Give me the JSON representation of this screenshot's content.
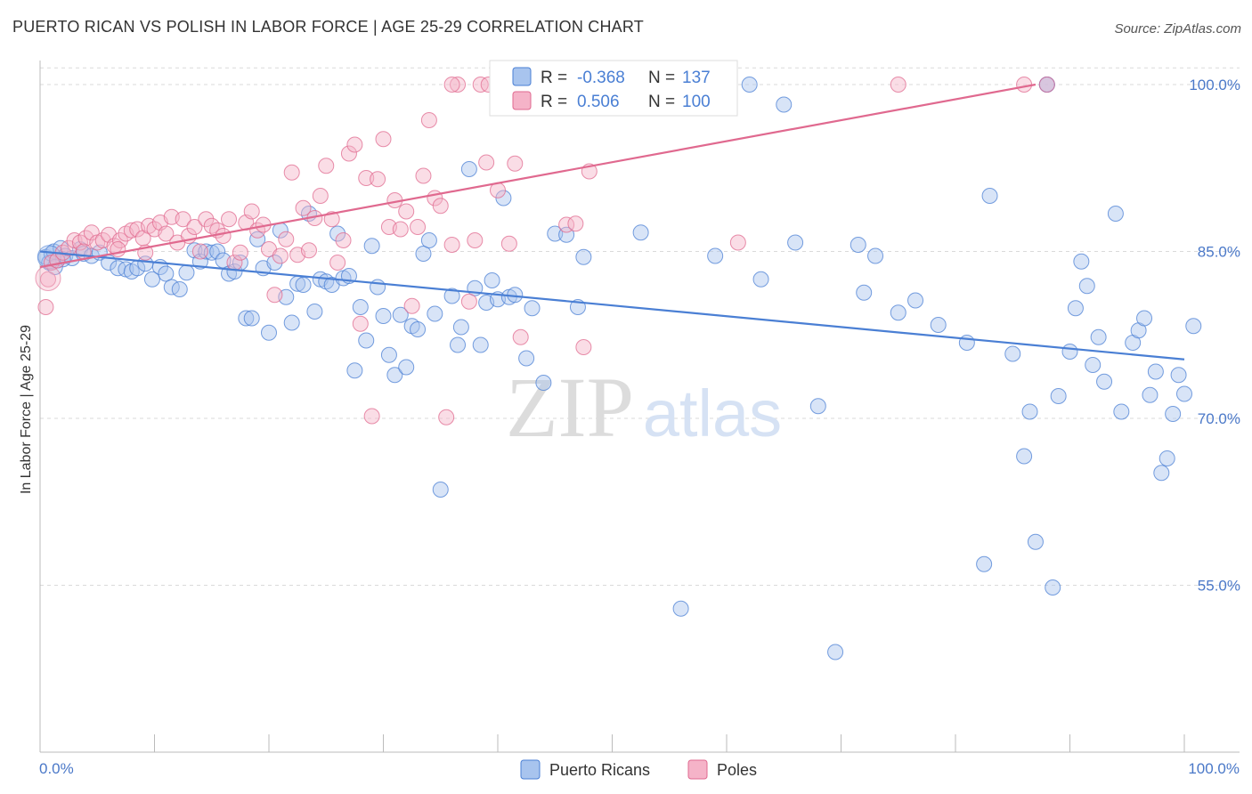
{
  "title": "PUERTO RICAN VS POLISH IN LABOR FORCE | AGE 25-29 CORRELATION CHART",
  "source": "Source: ZipAtlas.com",
  "watermark": {
    "zip": "ZIP",
    "atlas": "atlas"
  },
  "colors": {
    "blue": "#4a7fd4",
    "blue_fill": "#a8c4ee",
    "pink": "#e0698f",
    "pink_fill": "#f5b3c8",
    "grid": "#d9d9d9",
    "axis_text": "#4a78c8"
  },
  "legend": {
    "rows": [
      {
        "r_label": "R =",
        "r_value": "-0.368",
        "n_label": "N =",
        "n_value": "137"
      },
      {
        "r_label": "R =",
        "r_value": "0.506",
        "n_label": "N =",
        "n_value": "100"
      }
    ]
  },
  "chart_data": {
    "type": "scatter",
    "ylabel": "In Labor Force | Age 25-29",
    "xlim": [
      0,
      100
    ],
    "ylim": [
      40,
      102
    ],
    "x_tick_labels": [
      "0.0%",
      "100.0%"
    ],
    "y_ticks": [
      {
        "value": 100,
        "label": "100.0%"
      },
      {
        "value": 85,
        "label": "85.0%"
      },
      {
        "value": 70,
        "label": "70.0%"
      },
      {
        "value": 55,
        "label": "55.0%"
      }
    ],
    "series": [
      {
        "name": "Puerto Ricans",
        "color": "#4a7fd4",
        "trend": {
          "x0": 0,
          "y0": 85.0,
          "x1": 100,
          "y1": 75.3
        },
        "points": [
          [
            0.5,
            84.5
          ],
          [
            0.8,
            84.0
          ],
          [
            1.0,
            84.8
          ],
          [
            1.2,
            85.0
          ],
          [
            1.5,
            84.2
          ],
          [
            1.8,
            85.3
          ],
          [
            2.2,
            84.6
          ],
          [
            2.8,
            84.4
          ],
          [
            3.5,
            85.2
          ],
          [
            3.8,
            84.8
          ],
          [
            4.5,
            84.6
          ],
          [
            5.2,
            84.9
          ],
          [
            6.0,
            84.0
          ],
          [
            6.8,
            83.5
          ],
          [
            7.5,
            83.4
          ],
          [
            8.0,
            83.2
          ],
          [
            8.5,
            83.5
          ],
          [
            9.2,
            83.9
          ],
          [
            9.8,
            82.5
          ],
          [
            10.5,
            83.6
          ],
          [
            11.0,
            83.0
          ],
          [
            11.5,
            81.8
          ],
          [
            12.2,
            81.6
          ],
          [
            12.8,
            83.1
          ],
          [
            13.5,
            85.1
          ],
          [
            14.0,
            84.1
          ],
          [
            14.5,
            85.0
          ],
          [
            15.0,
            84.9
          ],
          [
            15.5,
            85.0
          ],
          [
            16.0,
            84.2
          ],
          [
            16.5,
            83.0
          ],
          [
            17.0,
            83.2
          ],
          [
            17.5,
            84.0
          ],
          [
            18.0,
            79.0
          ],
          [
            18.5,
            79.0
          ],
          [
            19.0,
            86.1
          ],
          [
            19.5,
            83.5
          ],
          [
            20.0,
            77.7
          ],
          [
            20.5,
            84.0
          ],
          [
            21.0,
            86.9
          ],
          [
            21.5,
            80.9
          ],
          [
            22.0,
            78.6
          ],
          [
            22.5,
            82.1
          ],
          [
            23.0,
            82.0
          ],
          [
            23.5,
            88.4
          ],
          [
            24.0,
            79.6
          ],
          [
            24.5,
            82.5
          ],
          [
            25.0,
            82.3
          ],
          [
            25.5,
            82.0
          ],
          [
            26.0,
            86.6
          ],
          [
            26.5,
            82.6
          ],
          [
            27.0,
            82.8
          ],
          [
            27.5,
            74.3
          ],
          [
            28.0,
            80.0
          ],
          [
            28.5,
            77.0
          ],
          [
            29.0,
            85.5
          ],
          [
            29.5,
            81.8
          ],
          [
            30.0,
            79.2
          ],
          [
            30.5,
            75.7
          ],
          [
            31.0,
            73.9
          ],
          [
            31.5,
            79.3
          ],
          [
            32.0,
            74.6
          ],
          [
            32.5,
            78.3
          ],
          [
            33.0,
            78.0
          ],
          [
            33.5,
            84.8
          ],
          [
            34.0,
            86.0
          ],
          [
            34.5,
            79.4
          ],
          [
            35.0,
            63.6
          ],
          [
            36.0,
            81.0
          ],
          [
            36.5,
            76.6
          ],
          [
            36.8,
            78.2
          ],
          [
            37.5,
            92.4
          ],
          [
            38.0,
            81.7
          ],
          [
            38.5,
            76.6
          ],
          [
            39.0,
            80.4
          ],
          [
            39.5,
            82.4
          ],
          [
            40.0,
            80.7
          ],
          [
            40.5,
            89.8
          ],
          [
            41.0,
            80.9
          ],
          [
            41.5,
            81.1
          ],
          [
            42.5,
            75.4
          ],
          [
            43.0,
            79.9
          ],
          [
            44.0,
            73.2
          ],
          [
            45.0,
            86.6
          ],
          [
            46.0,
            86.5
          ],
          [
            47.0,
            80.0
          ],
          [
            47.5,
            84.5
          ],
          [
            48.0,
            100.0
          ],
          [
            52.5,
            86.7
          ],
          [
            54.0,
            100.0
          ],
          [
            56.0,
            52.9
          ],
          [
            59.0,
            84.6
          ],
          [
            62.0,
            100.0
          ],
          [
            63.0,
            82.5
          ],
          [
            65.0,
            98.2
          ],
          [
            66.0,
            85.8
          ],
          [
            68.0,
            71.1
          ],
          [
            69.5,
            49.0
          ],
          [
            71.5,
            85.6
          ],
          [
            72.0,
            81.3
          ],
          [
            73.0,
            84.6
          ],
          [
            75.0,
            79.5
          ],
          [
            76.5,
            80.6
          ],
          [
            78.5,
            78.4
          ],
          [
            81.0,
            76.8
          ],
          [
            82.5,
            56.9
          ],
          [
            83.0,
            90.0
          ],
          [
            85.0,
            75.8
          ],
          [
            86.0,
            66.6
          ],
          [
            86.5,
            70.6
          ],
          [
            87.0,
            58.9
          ],
          [
            88.0,
            100.0
          ],
          [
            88.5,
            54.8
          ],
          [
            89.0,
            72.0
          ],
          [
            90.0,
            76.0
          ],
          [
            90.5,
            79.9
          ],
          [
            91.0,
            84.1
          ],
          [
            91.5,
            81.9
          ],
          [
            92.0,
            74.8
          ],
          [
            92.5,
            77.3
          ],
          [
            93.0,
            73.3
          ],
          [
            94.0,
            88.4
          ],
          [
            94.5,
            70.6
          ],
          [
            95.5,
            76.8
          ],
          [
            96.0,
            77.9
          ],
          [
            96.5,
            79.0
          ],
          [
            97.0,
            72.1
          ],
          [
            97.5,
            74.2
          ],
          [
            98.0,
            65.1
          ],
          [
            98.5,
            66.4
          ],
          [
            99.0,
            70.4
          ],
          [
            99.5,
            73.9
          ],
          [
            100.0,
            72.2
          ],
          [
            100.8,
            78.3
          ],
          [
            88.0,
            100.0
          ],
          [
            2.0,
            84.3
          ],
          [
            1.3,
            83.6
          ]
        ]
      },
      {
        "name": "Poles",
        "color": "#e0698f",
        "trend": {
          "x0": 0,
          "y0": 83.6,
          "x1": 87,
          "y1": 100.0
        },
        "points": [
          [
            0.5,
            80.0
          ],
          [
            0.7,
            82.5
          ],
          [
            1.0,
            84.0
          ],
          [
            1.5,
            84.2
          ],
          [
            2.0,
            84.9
          ],
          [
            2.5,
            85.3
          ],
          [
            3.0,
            86.0
          ],
          [
            3.5,
            85.8
          ],
          [
            4.0,
            86.2
          ],
          [
            4.5,
            86.7
          ],
          [
            5.0,
            85.8
          ],
          [
            5.5,
            86.0
          ],
          [
            6.0,
            86.5
          ],
          [
            6.5,
            85.5
          ],
          [
            7.0,
            86.0
          ],
          [
            7.5,
            86.6
          ],
          [
            8.0,
            86.9
          ],
          [
            8.5,
            87.0
          ],
          [
            9.0,
            86.2
          ],
          [
            9.5,
            87.3
          ],
          [
            10.0,
            87.0
          ],
          [
            10.5,
            87.6
          ],
          [
            11.0,
            86.6
          ],
          [
            11.5,
            88.1
          ],
          [
            12.0,
            85.8
          ],
          [
            12.5,
            87.9
          ],
          [
            13.0,
            86.4
          ],
          [
            13.5,
            87.2
          ],
          [
            14.0,
            85.0
          ],
          [
            14.5,
            87.9
          ],
          [
            15.0,
            87.3
          ],
          [
            15.5,
            86.9
          ],
          [
            16.0,
            86.4
          ],
          [
            16.5,
            87.9
          ],
          [
            17.0,
            84.0
          ],
          [
            17.5,
            84.9
          ],
          [
            18.0,
            87.6
          ],
          [
            18.5,
            88.6
          ],
          [
            19.0,
            86.9
          ],
          [
            19.5,
            87.4
          ],
          [
            20.0,
            85.2
          ],
          [
            20.5,
            81.1
          ],
          [
            21.0,
            84.6
          ],
          [
            21.5,
            86.1
          ],
          [
            22.0,
            92.1
          ],
          [
            22.5,
            84.7
          ],
          [
            23.0,
            88.9
          ],
          [
            23.5,
            85.1
          ],
          [
            24.0,
            88.0
          ],
          [
            24.5,
            90.0
          ],
          [
            25.0,
            92.7
          ],
          [
            25.5,
            87.9
          ],
          [
            26.0,
            84.0
          ],
          [
            26.5,
            86.0
          ],
          [
            27.0,
            93.8
          ],
          [
            27.5,
            94.6
          ],
          [
            28.0,
            78.5
          ],
          [
            28.5,
            91.6
          ],
          [
            29.0,
            70.2
          ],
          [
            29.5,
            91.5
          ],
          [
            30.0,
            95.1
          ],
          [
            30.5,
            87.2
          ],
          [
            31.0,
            89.6
          ],
          [
            31.5,
            87.0
          ],
          [
            32.0,
            88.6
          ],
          [
            32.5,
            80.1
          ],
          [
            33.0,
            87.2
          ],
          [
            33.5,
            91.8
          ],
          [
            34.0,
            96.8
          ],
          [
            34.5,
            89.8
          ],
          [
            35.0,
            89.1
          ],
          [
            35.5,
            70.1
          ],
          [
            36.0,
            85.6
          ],
          [
            36.5,
            100.0
          ],
          [
            37.5,
            80.5
          ],
          [
            38.0,
            86.0
          ],
          [
            39.0,
            93.0
          ],
          [
            40.0,
            90.5
          ],
          [
            41.0,
            85.7
          ],
          [
            41.5,
            92.9
          ],
          [
            42.0,
            77.3
          ],
          [
            43.0,
            100.0
          ],
          [
            44.0,
            100.0
          ],
          [
            46.0,
            87.4
          ],
          [
            46.8,
            87.5
          ],
          [
            47.5,
            76.4
          ],
          [
            48.0,
            92.2
          ],
          [
            50.0,
            100.0
          ],
          [
            55.0,
            100.0
          ],
          [
            61.0,
            85.8
          ],
          [
            75.0,
            100.0
          ],
          [
            86.0,
            100.0
          ],
          [
            88.0,
            100.0
          ],
          [
            38.5,
            100.0
          ],
          [
            39.2,
            100.0
          ],
          [
            44.5,
            100.0
          ],
          [
            36.0,
            100.0
          ],
          [
            3.8,
            85.0
          ],
          [
            6.8,
            85.2
          ],
          [
            9.2,
            84.9
          ]
        ]
      }
    ],
    "legend_placement": "top-center",
    "grid": true
  },
  "bottom_legend": [
    {
      "label": "Puerto Ricans"
    },
    {
      "label": "Poles"
    }
  ]
}
